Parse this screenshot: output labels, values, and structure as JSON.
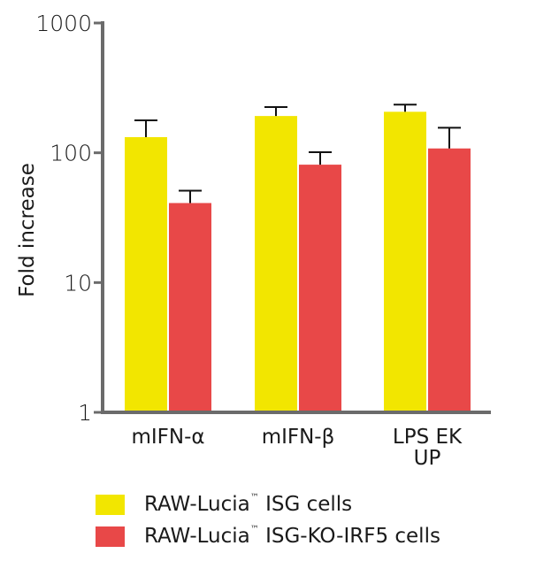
{
  "chart_data": {
    "type": "bar",
    "title": "",
    "xlabel": "",
    "ylabel": "Fold increase",
    "yscale": "log",
    "ylim": [
      1,
      1000
    ],
    "yticks": [
      1,
      10,
      100,
      1000
    ],
    "ytick_labels": [
      "1",
      "10",
      "100",
      "1000"
    ],
    "grid": false,
    "legend_position": "bottom",
    "categories": [
      "mIFN-α",
      "mIFN-β",
      "LPS EK UP"
    ],
    "category_lines": [
      [
        "mIFN-α"
      ],
      [
        "mIFN-β"
      ],
      [
        "LPS EK",
        "UP"
      ]
    ],
    "series": [
      {
        "name": "RAW-Lucia™ ISG cells",
        "name_base": "RAW-Lucia",
        "name_tm": "™",
        "name_rest": " ISG cells",
        "color": "#F2E600",
        "values": [
          132,
          192,
          207
        ],
        "error_upper": [
          178,
          225,
          235
        ]
      },
      {
        "name": "RAW-Lucia™ ISG-KO-IRF5 cells",
        "name_base": "RAW-Lucia",
        "name_tm": "™",
        "name_rest": " ISG-KO-IRF5 cells",
        "color": "#E84848",
        "values": [
          41,
          81,
          108
        ],
        "error_upper": [
          51,
          101,
          156
        ]
      }
    ],
    "axis_color": "#6B6B6B"
  }
}
